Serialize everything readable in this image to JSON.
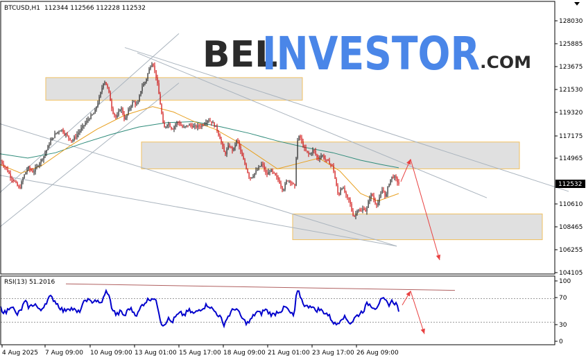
{
  "header": {
    "symbol": "BTCUSD,H1",
    "ohlc": "112344 112566 112228 112532"
  },
  "logo": {
    "part1": "BEL",
    "part2": "INVESTOR",
    "part3": ".COM"
  },
  "colors": {
    "bull": "#1a1a1a",
    "bear": "#cc0000",
    "ma_fast": "#e8a020",
    "ma_slow": "#2e8b7a",
    "channel": "#aab4be",
    "zone_fill": "#e0e0e0",
    "zone_border": "#f0c060",
    "rsi_line": "#0000cc",
    "rsi_trend": "#b06060",
    "forecast": "#e84040",
    "price_box": "#000000",
    "logo_blue": "#4a86e8"
  },
  "chart_data": [
    {
      "type": "candlestick",
      "title": "BTCUSD,H1",
      "ylim": [
        104105,
        129500
      ],
      "y_ticks": [
        "128030",
        "125885",
        "123675",
        "121530",
        "119320",
        "117175",
        "114965",
        "112532",
        "110610",
        "108465",
        "106255",
        "104105"
      ],
      "x_ticks": [
        "4 Aug 2025",
        "7 Aug 09:00",
        "10 Aug 09:00",
        "13 Aug 01:00",
        "15 Aug 17:00",
        "18 Aug 09:00",
        "21 Aug 01:00",
        "23 Aug 17:00",
        "26 Aug 09:00"
      ],
      "current_price": "112532",
      "close_path": [
        [
          0,
          114700
        ],
        [
          6,
          114200
        ],
        [
          10,
          113800
        ],
        [
          16,
          113100
        ],
        [
          22,
          112600
        ],
        [
          28,
          112000
        ],
        [
          34,
          113200
        ],
        [
          40,
          114000
        ],
        [
          48,
          113600
        ],
        [
          56,
          114400
        ],
        [
          64,
          115200
        ],
        [
          72,
          116400
        ],
        [
          80,
          117200
        ],
        [
          88,
          117600
        ],
        [
          96,
          117000
        ],
        [
          104,
          116500
        ],
        [
          112,
          117200
        ],
        [
          120,
          117900
        ],
        [
          128,
          118600
        ],
        [
          136,
          119100
        ],
        [
          144,
          120700
        ],
        [
          150,
          122200
        ],
        [
          156,
          121300
        ],
        [
          162,
          119300
        ],
        [
          168,
          118600
        ],
        [
          174,
          119700
        ],
        [
          180,
          118400
        ],
        [
          186,
          119500
        ],
        [
          192,
          120200
        ],
        [
          198,
          119800
        ],
        [
          204,
          121500
        ],
        [
          210,
          122100
        ],
        [
          216,
          123400
        ],
        [
          220,
          123900
        ],
        [
          226,
          122200
        ],
        [
          232,
          119500
        ],
        [
          236,
          117600
        ],
        [
          242,
          118200
        ],
        [
          248,
          117600
        ],
        [
          256,
          118300
        ],
        [
          264,
          117700
        ],
        [
          272,
          118000
        ],
        [
          280,
          117800
        ],
        [
          290,
          117900
        ],
        [
          300,
          118500
        ],
        [
          306,
          118200
        ],
        [
          312,
          117700
        ],
        [
          318,
          116600
        ],
        [
          324,
          115200
        ],
        [
          330,
          116100
        ],
        [
          336,
          115600
        ],
        [
          342,
          116700
        ],
        [
          348,
          115200
        ],
        [
          354,
          114200
        ],
        [
          360,
          113000
        ],
        [
          366,
          113400
        ],
        [
          372,
          113900
        ],
        [
          378,
          114400
        ],
        [
          384,
          113300
        ],
        [
          390,
          113800
        ],
        [
          396,
          113300
        ],
        [
          402,
          112800
        ],
        [
          408,
          111900
        ],
        [
          414,
          112900
        ],
        [
          420,
          112700
        ],
        [
          425,
          112200
        ],
        [
          428,
          116400
        ],
        [
          432,
          117000
        ],
        [
          436,
          116200
        ],
        [
          440,
          115600
        ],
        [
          446,
          115200
        ],
        [
          452,
          115700
        ],
        [
          458,
          114800
        ],
        [
          464,
          115200
        ],
        [
          470,
          114700
        ],
        [
          476,
          114400
        ],
        [
          480,
          114100
        ],
        [
          484,
          112600
        ],
        [
          488,
          111300
        ],
        [
          492,
          112300
        ],
        [
          496,
          111900
        ],
        [
          500,
          111200
        ],
        [
          504,
          110900
        ],
        [
          508,
          109700
        ],
        [
          512,
          109500
        ],
        [
          516,
          110300
        ],
        [
          520,
          109800
        ],
        [
          524,
          110300
        ],
        [
          528,
          109900
        ],
        [
          532,
          111100
        ],
        [
          536,
          111600
        ],
        [
          540,
          110800
        ],
        [
          544,
          110600
        ],
        [
          548,
          111300
        ],
        [
          552,
          112100
        ],
        [
          556,
          111200
        ],
        [
          560,
          112400
        ],
        [
          564,
          113100
        ],
        [
          568,
          113200
        ],
        [
          572,
          112800
        ],
        [
          575,
          112532
        ]
      ],
      "ma_fast": [
        [
          0,
          114300
        ],
        [
          30,
          113500
        ],
        [
          60,
          114200
        ],
        [
          100,
          116000
        ],
        [
          140,
          117600
        ],
        [
          180,
          118900
        ],
        [
          220,
          119700
        ],
        [
          250,
          119200
        ],
        [
          280,
          118300
        ],
        [
          310,
          117600
        ],
        [
          340,
          116500
        ],
        [
          370,
          115200
        ],
        [
          400,
          113900
        ],
        [
          430,
          114400
        ],
        [
          460,
          114900
        ],
        [
          490,
          113700
        ],
        [
          520,
          111600
        ],
        [
          545,
          110900
        ],
        [
          575,
          111600
        ]
      ],
      "ma_slow": [
        [
          0,
          115300
        ],
        [
          40,
          114900
        ],
        [
          80,
          115400
        ],
        [
          120,
          116300
        ],
        [
          160,
          117100
        ],
        [
          200,
          117800
        ],
        [
          240,
          118200
        ],
        [
          280,
          118300
        ],
        [
          320,
          117800
        ],
        [
          360,
          117200
        ],
        [
          400,
          116500
        ],
        [
          440,
          115900
        ],
        [
          480,
          115400
        ],
        [
          520,
          114700
        ],
        [
          550,
          114300
        ],
        [
          575,
          114000
        ]
      ],
      "zones": [
        {
          "top": 122400,
          "bottom": 120300,
          "x0": 66,
          "x1": 436
        },
        {
          "top": 116400,
          "bottom": 113900,
          "x0": 204,
          "x1": 749
        },
        {
          "top": 109700,
          "bottom": 107300,
          "x0": 422,
          "x1": 782
        }
      ],
      "channels": [
        {
          "from": [
            0,
            111700
          ],
          "to": [
            258,
            126500
          ]
        },
        {
          "from": [
            0,
            108500
          ],
          "to": [
            258,
            121900
          ]
        },
        {
          "from": [
            180,
            125200
          ],
          "to": [
            820,
            111800
          ]
        },
        {
          "from": [
            198,
            124700
          ],
          "to": [
            702,
            111200
          ]
        },
        {
          "from": [
            0,
            118100
          ],
          "to": [
            572,
            106700
          ]
        },
        {
          "from": [
            0,
            113300
          ],
          "to": [
            572,
            106700
          ]
        }
      ],
      "forecast": [
        {
          "from": [
            578,
            112700
          ],
          "to": [
            592,
            114800
          ]
        },
        {
          "from": [
            592,
            114800
          ],
          "to": [
            634,
            105400
          ]
        }
      ]
    },
    {
      "type": "line",
      "title": "RSI(13) 51.2016",
      "ylim": [
        0,
        100
      ],
      "y_ticks": [
        "100",
        "70",
        "30",
        "0"
      ],
      "levels": [
        70,
        30
      ],
      "trend": {
        "from": [
          95,
          95
        ],
        "to": [
          656,
          84
        ]
      },
      "forecast": [
        {
          "from": [
            580,
            59
          ],
          "to": [
            592,
            83
          ]
        },
        {
          "from": [
            592,
            83
          ],
          "to": [
            612,
            10
          ]
        }
      ],
      "points": [
        [
          0,
          55
        ],
        [
          8,
          45
        ],
        [
          16,
          60
        ],
        [
          24,
          42
        ],
        [
          30,
          50
        ],
        [
          36,
          65
        ],
        [
          42,
          55
        ],
        [
          50,
          62
        ],
        [
          58,
          48
        ],
        [
          64,
          60
        ],
        [
          72,
          73
        ],
        [
          78,
          68
        ],
        [
          86,
          56
        ],
        [
          92,
          48
        ],
        [
          98,
          55
        ],
        [
          106,
          52
        ],
        [
          112,
          45
        ],
        [
          118,
          55
        ],
        [
          124,
          70
        ],
        [
          130,
          64
        ],
        [
          138,
          68
        ],
        [
          144,
          60
        ],
        [
          150,
          72
        ],
        [
          154,
          85
        ],
        [
          158,
          70
        ],
        [
          162,
          52
        ],
        [
          168,
          42
        ],
        [
          174,
          48
        ],
        [
          180,
          40
        ],
        [
          186,
          55
        ],
        [
          192,
          48
        ],
        [
          198,
          42
        ],
        [
          204,
          58
        ],
        [
          210,
          65
        ],
        [
          216,
          70
        ],
        [
          222,
          72
        ],
        [
          228,
          55
        ],
        [
          232,
          30
        ],
        [
          236,
          25
        ],
        [
          242,
          36
        ],
        [
          248,
          30
        ],
        [
          254,
          40
        ],
        [
          260,
          45
        ],
        [
          266,
          42
        ],
        [
          272,
          50
        ],
        [
          280,
          44
        ],
        [
          288,
          52
        ],
        [
          294,
          56
        ],
        [
          300,
          60
        ],
        [
          306,
          52
        ],
        [
          312,
          46
        ],
        [
          318,
          38
        ],
        [
          322,
          25
        ],
        [
          328,
          38
        ],
        [
          334,
          48
        ],
        [
          340,
          55
        ],
        [
          346,
          42
        ],
        [
          352,
          32
        ],
        [
          358,
          28
        ],
        [
          364,
          38
        ],
        [
          370,
          48
        ],
        [
          376,
          44
        ],
        [
          382,
          52
        ],
        [
          388,
          46
        ],
        [
          394,
          42
        ],
        [
          400,
          48
        ],
        [
          406,
          50
        ],
        [
          412,
          56
        ],
        [
          418,
          46
        ],
        [
          424,
          40
        ],
        [
          428,
          82
        ],
        [
          432,
          78
        ],
        [
          436,
          65
        ],
        [
          442,
          55
        ],
        [
          448,
          60
        ],
        [
          454,
          50
        ],
        [
          460,
          52
        ],
        [
          466,
          48
        ],
        [
          472,
          44
        ],
        [
          478,
          35
        ],
        [
          484,
          25
        ],
        [
          488,
          30
        ],
        [
          494,
          40
        ],
        [
          500,
          35
        ],
        [
          506,
          28
        ],
        [
          512,
          38
        ],
        [
          518,
          44
        ],
        [
          524,
          50
        ],
        [
          530,
          62
        ],
        [
          536,
          58
        ],
        [
          542,
          54
        ],
        [
          548,
          66
        ],
        [
          554,
          68
        ],
        [
          560,
          60
        ],
        [
          566,
          66
        ],
        [
          572,
          60
        ],
        [
          575,
          51
        ]
      ]
    }
  ]
}
